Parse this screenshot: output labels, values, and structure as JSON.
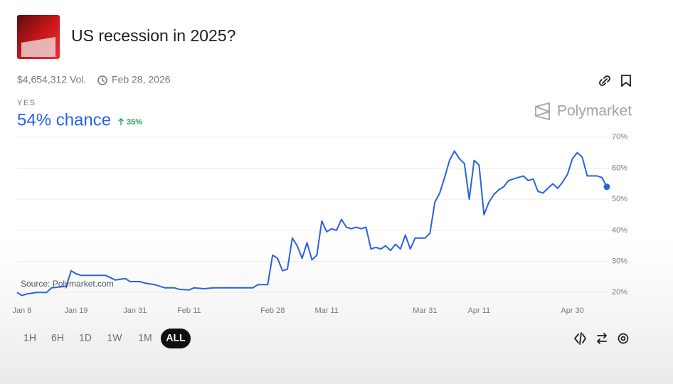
{
  "header": {
    "title": "US recession in 2025?",
    "volume": "$4,654,312 Vol.",
    "end_date": "Feb 28, 2026",
    "brand": "Polymarket"
  },
  "outcome": {
    "label": "YES",
    "chance": "54% chance",
    "change": "35%"
  },
  "controls": {
    "ranges": [
      "1H",
      "6H",
      "1D",
      "1W",
      "1M",
      "ALL"
    ],
    "active": 5
  },
  "chart_data": {
    "type": "line",
    "annotation": "Source: Polymarket.com",
    "color": "#2a62e0",
    "x": [
      "Jan 7",
      "Jan 8",
      "Jan 9",
      "Jan 11",
      "Jan 13",
      "Jan 14",
      "Jan 17",
      "Jan 18",
      "Jan 19",
      "Jan 20",
      "Jan 22",
      "Jan 25",
      "Jan 27",
      "Jan 29",
      "Jan 30",
      "Feb 1",
      "Feb 2",
      "Feb 4",
      "Feb 6",
      "Feb 8",
      "Feb 9",
      "Feb 11",
      "Feb 12",
      "Feb 14",
      "Feb 16",
      "Feb 20",
      "Feb 24",
      "Feb 25",
      "Feb 27",
      "Feb 28",
      "Mar 1",
      "Mar 2",
      "Mar 3",
      "Mar 4",
      "Mar 5",
      "Mar 6",
      "Mar 7",
      "Mar 8",
      "Mar 9",
      "Mar 10",
      "Mar 11",
      "Mar 12",
      "Mar 13",
      "Mar 14",
      "Mar 15",
      "Mar 16",
      "Mar 17",
      "Mar 18",
      "Mar 19",
      "Mar 20",
      "Mar 21",
      "Mar 22",
      "Mar 23",
      "Mar 24",
      "Mar 25",
      "Mar 26",
      "Mar 27",
      "Mar 28",
      "Mar 29",
      "Mar 30",
      "Mar 31",
      "Apr 1",
      "Apr 2",
      "Apr 3",
      "Apr 4",
      "Apr 5",
      "Apr 6",
      "Apr 7",
      "Apr 8",
      "Apr 9",
      "Apr 10",
      "Apr 11",
      "Apr 12",
      "Apr 13",
      "Apr 14",
      "Apr 15",
      "Apr 16",
      "Apr 17",
      "Apr 18",
      "Apr 19",
      "Apr 20",
      "Apr 21",
      "Apr 22",
      "Apr 23",
      "Apr 24",
      "Apr 25",
      "Apr 26",
      "Apr 27",
      "Apr 28",
      "Apr 29",
      "Apr 30",
      "May 1",
      "May 2",
      "May 3",
      "May 4",
      "May 5",
      "May 6",
      "May 7"
    ],
    "values": [
      20,
      19,
      19.5,
      20,
      20,
      21.5,
      22,
      27,
      26,
      25.5,
      25.5,
      25.5,
      24,
      24.5,
      23.5,
      23.5,
      23,
      22.5,
      21.5,
      21.5,
      21,
      20.8,
      21.5,
      21.2,
      21.5,
      21.5,
      21.5,
      22.5,
      22.5,
      32,
      31,
      27,
      27.5,
      37.5,
      35,
      31,
      36,
      30.5,
      32,
      43,
      39.5,
      40.5,
      40,
      43.5,
      41,
      40.5,
      41,
      40.5,
      41,
      34,
      34.5,
      34,
      35,
      33.5,
      35.5,
      34,
      38.5,
      34,
      37.5,
      37.5,
      37.5,
      39,
      49,
      52,
      57,
      62.5,
      65.5,
      63,
      61.5,
      50,
      62.5,
      61,
      45,
      49,
      51.5,
      53,
      54,
      56,
      56.5,
      57,
      57.5,
      56,
      56.5,
      52.5,
      52,
      53.5,
      55,
      53.5,
      55.5,
      58,
      63,
      65,
      63.5,
      57.5,
      57.5,
      57.5,
      57,
      54
    ],
    "xlim": [
      "Jan 7",
      "May 7"
    ],
    "xticks": [
      "Jan 8",
      "Jan 19",
      "Jan 31",
      "Feb 11",
      "Feb 28",
      "Mar 11",
      "Mar 31",
      "Apr 11",
      "Apr 30"
    ],
    "ylim": [
      18,
      72
    ],
    "yticks": [
      {
        "value": 20,
        "label": "20%"
      },
      {
        "value": 30,
        "label": "30%"
      },
      {
        "value": 40,
        "label": "40%"
      },
      {
        "value": 50,
        "label": "50%"
      },
      {
        "value": 60,
        "label": "60%"
      },
      {
        "value": 70,
        "label": "70%"
      }
    ],
    "grid": true
  }
}
